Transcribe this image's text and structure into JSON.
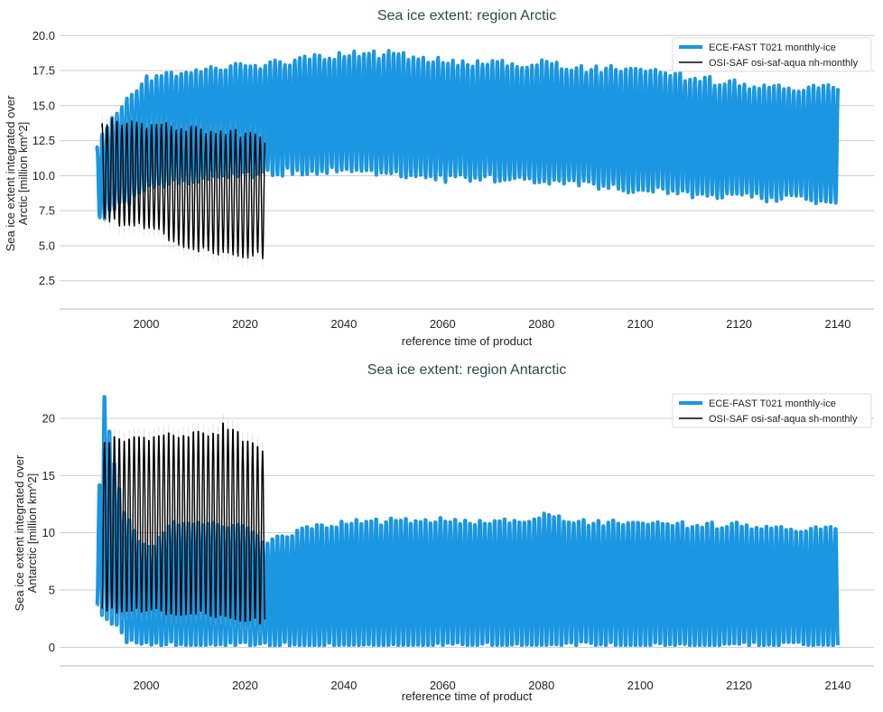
{
  "colors": {
    "model": "#1b96e0",
    "obs": "#000000",
    "obs_band": "#bbbbbb"
  },
  "chart_data": [
    {
      "type": "line",
      "title": "Sea ice extent: region Arctic",
      "xlabel": "reference time of product",
      "ylabel": [
        "Sea ice extent integrated over",
        "Arctic [million km^2]"
      ],
      "xlim": [
        1986,
        2145
      ],
      "ylim": [
        1.0,
        20.6
      ],
      "xticks": [
        2000,
        2020,
        2040,
        2060,
        2080,
        2100,
        2120,
        2140
      ],
      "yticks": [
        2.5,
        5.0,
        7.5,
        10.0,
        12.5,
        15.0,
        17.5,
        20.0
      ],
      "ytick_labels": [
        "2.5",
        "5.0",
        "7.5",
        "10.0",
        "12.5",
        "15.0",
        "17.5",
        "20.0"
      ],
      "grid": true,
      "legend": "top-right",
      "series": [
        {
          "name": "ECE-FAST T021 monthly-ice",
          "x_range": [
            1990,
            2140
          ],
          "annual_max_by_decade": {
            "years": [
              1990,
              1995,
              2000,
              2010,
              2020,
              2030,
              2040,
              2050,
              2060,
              2070,
              2080,
              2090,
              2100,
              2110,
              2120,
              2130,
              2140
            ],
            "values": [
              12.2,
              15.0,
              17.0,
              17.5,
              17.8,
              18.2,
              18.6,
              18.7,
              18.2,
              18.0,
              18.0,
              17.6,
              17.6,
              17.0,
              16.5,
              16.3,
              16.3
            ]
          },
          "annual_min_by_decade": {
            "years": [
              1990,
              1995,
              2000,
              2010,
              2020,
              2030,
              2040,
              2050,
              2060,
              2070,
              2080,
              2090,
              2100,
              2110,
              2120,
              2130,
              2140
            ],
            "values": [
              6.9,
              8.0,
              9.0,
              9.8,
              10.0,
              10.3,
              10.4,
              10.2,
              9.8,
              9.8,
              9.7,
              9.2,
              9.0,
              8.7,
              8.5,
              8.3,
              8.0
            ]
          }
        },
        {
          "name": "OSI-SAF osi-saf-aqua nh-monthly",
          "x_range": [
            1991,
            2024
          ],
          "annual_max_by_decade": {
            "years": [
              1991,
              2000,
              2010,
              2020,
              2024
            ],
            "values": [
              13.9,
              13.7,
              13.3,
              13.0,
              12.9
            ]
          },
          "annual_min_by_decade": {
            "years": [
              1991,
              2000,
              2010,
              2020,
              2024
            ],
            "values": [
              6.8,
              6.2,
              4.6,
              4.3,
              4.3
            ]
          }
        }
      ]
    },
    {
      "type": "line",
      "title": "Sea ice extent: region Antarctic",
      "xlabel": "reference time of product",
      "ylabel": [
        "Sea ice extent integrated over",
        "Antarctic [million km^2]"
      ],
      "xlim": [
        1986,
        2145
      ],
      "ylim": [
        -1.0,
        23.0
      ],
      "xticks": [
        2000,
        2020,
        2040,
        2060,
        2080,
        2100,
        2120,
        2140
      ],
      "yticks": [
        0,
        5,
        10,
        15,
        20
      ],
      "ytick_labels": [
        "0",
        "5",
        "10",
        "15",
        "20"
      ],
      "grid": true,
      "legend": "top-right",
      "series": [
        {
          "name": "ECE-FAST T021 monthly-ice",
          "x_range": [
            1990,
            2140
          ],
          "annual_max_by_decade": {
            "years": [
              1990,
              1991,
              1993,
              1995,
              1998,
              2000,
              2005,
              2010,
              2020,
              2024,
              2030,
              2040,
              2050,
              2060,
              2070,
              2080,
              2090,
              2100,
              2110,
              2120,
              2130,
              2140
            ],
            "values": [
              14.5,
              22.0,
              16.0,
              12.0,
              9.5,
              8.8,
              11.0,
              11.0,
              10.5,
              9.3,
              10.3,
              11.0,
              11.2,
              11.3,
              11.0,
              11.6,
              11.0,
              11.0,
              10.8,
              10.8,
              10.5,
              10.5
            ]
          },
          "annual_min_by_decade": {
            "years": [
              1990,
              1992,
              1994,
              1996,
              1998,
              2000,
              2140
            ],
            "values": [
              3.4,
              2.0,
              1.5,
              0.5,
              0.1,
              0.0,
              0.0
            ]
          }
        },
        {
          "name": "OSI-SAF osi-saf-aqua sh-monthly",
          "x_range": [
            1991,
            2024
          ],
          "annual_max_by_decade": {
            "years": [
              1991,
              2000,
              2014,
              2015,
              2020,
              2024
            ],
            "values": [
              18.3,
              18.6,
              19.0,
              19.8,
              18.2,
              17.3
            ]
          },
          "annual_min_by_decade": {
            "years": [
              1991,
              2000,
              2010,
              2020,
              2024
            ],
            "values": [
              3.0,
              2.9,
              2.7,
              2.2,
              2.0
            ]
          }
        }
      ]
    }
  ]
}
